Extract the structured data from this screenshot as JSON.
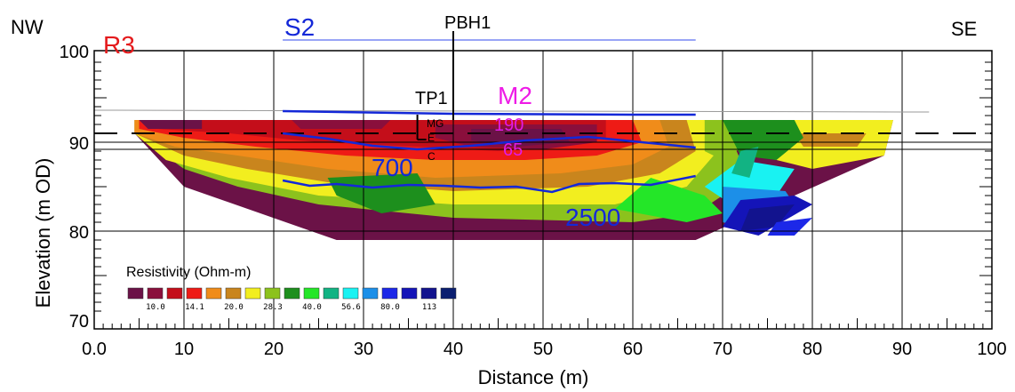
{
  "chart_data": {
    "type": "heatmap",
    "xlabel": "Distance (m)",
    "ylabel": "Elevation (m OD)",
    "xlim": [
      0,
      100
    ],
    "ylim": [
      69,
      103
    ],
    "x_ticks": [
      {
        "v": 0,
        "label": "0.0"
      },
      {
        "v": 10,
        "label": "10"
      },
      {
        "v": 20,
        "label": "20"
      },
      {
        "v": 30,
        "label": "30"
      },
      {
        "v": 40,
        "label": "40"
      },
      {
        "v": 50,
        "label": "50"
      },
      {
        "v": 60,
        "label": "60"
      },
      {
        "v": 70,
        "label": "70"
      },
      {
        "v": 80,
        "label": "80"
      },
      {
        "v": 90,
        "label": "90"
      },
      {
        "v": 100,
        "label": "100"
      }
    ],
    "y_ticks": [
      {
        "v": 100,
        "label": "100"
      },
      {
        "v": 90,
        "label": "90"
      },
      {
        "v": 80,
        "label": "80"
      },
      {
        "v": 70,
        "label": "70"
      }
    ],
    "grid": true,
    "corner_labels": {
      "left": "NW",
      "right": "SE"
    },
    "legend": {
      "title": "Resistivity (Ohm-m)",
      "colors": [
        "#6b1247",
        "#8a0f3c",
        "#c40e1a",
        "#ee1b16",
        "#f08c1a",
        "#c9851d",
        "#f2ee1f",
        "#8cc21d",
        "#1d8f1d",
        "#24e628",
        "#12b383",
        "#19f2f2",
        "#1c8fe8",
        "#1c28e8",
        "#1414b8",
        "#12138e",
        "#0a1e70"
      ],
      "tick_labels": [
        "10.0",
        "14.1",
        "20.0",
        "28.3",
        "40.0",
        "56.6",
        "80.0",
        "113"
      ]
    },
    "annotations": {
      "r3": "R3",
      "s2": "S2",
      "pbh1": "PBH1",
      "tp1": "TP1",
      "m2": "M2",
      "mg": "MG",
      "e": "E",
      "c": "C",
      "m2_val1": "190",
      "m2_val2": "65",
      "contour_700": "700",
      "contour_2500": "2500"
    },
    "water_level_m": 91,
    "ground_surface_m": 93.4,
    "section_outline": [
      [
        4.5,
        92.5
      ],
      [
        89,
        92.5
      ],
      [
        88,
        88.5
      ],
      [
        78,
        84
      ],
      [
        67,
        79
      ],
      [
        27,
        79
      ],
      [
        10,
        85
      ],
      [
        4.5,
        91
      ]
    ],
    "resistivity_zones": [
      {
        "level": 0,
        "poly": [
          [
            4.5,
            92.5
          ],
          [
            89,
            92.5
          ],
          [
            88,
            88.5
          ],
          [
            78,
            84
          ],
          [
            67,
            79
          ],
          [
            27,
            79
          ],
          [
            10,
            85
          ],
          [
            4.5,
            91
          ]
        ]
      },
      {
        "level": 7,
        "poly": [
          [
            4.5,
            92.5
          ],
          [
            70,
            92.5
          ],
          [
            72,
            88
          ],
          [
            70,
            84
          ],
          [
            67,
            82
          ],
          [
            60,
            81
          ],
          [
            40,
            81.5
          ],
          [
            25,
            83
          ],
          [
            16,
            85
          ],
          [
            10,
            87
          ],
          [
            4.5,
            91
          ]
        ]
      },
      {
        "level": 6,
        "poly": [
          [
            4.5,
            92.5
          ],
          [
            68,
            92.5
          ],
          [
            69,
            88.5
          ],
          [
            66,
            85
          ],
          [
            58,
            83
          ],
          [
            40,
            83
          ],
          [
            25,
            84
          ],
          [
            15,
            86
          ],
          [
            8,
            88
          ],
          [
            4.5,
            91
          ]
        ]
      },
      {
        "level": 5,
        "poly": [
          [
            4.5,
            92.5
          ],
          [
            66,
            92.5
          ],
          [
            67,
            89
          ],
          [
            63,
            86.5
          ],
          [
            55,
            85
          ],
          [
            40,
            84.5
          ],
          [
            26,
            85.5
          ],
          [
            17,
            87
          ],
          [
            10,
            88.5
          ],
          [
            4.5,
            91
          ]
        ]
      },
      {
        "level": 4,
        "poly": [
          [
            4.5,
            92.5
          ],
          [
            63,
            92.5
          ],
          [
            64,
            89.5
          ],
          [
            60,
            87.5
          ],
          [
            52,
            86.5
          ],
          [
            38,
            86
          ],
          [
            26,
            87
          ],
          [
            16,
            88.5
          ],
          [
            9,
            89.5
          ],
          [
            4.5,
            91
          ]
        ]
      },
      {
        "level": 3,
        "poly": [
          [
            5,
            92.5
          ],
          [
            60,
            92.5
          ],
          [
            61,
            90
          ],
          [
            56,
            88.5
          ],
          [
            48,
            88
          ],
          [
            38,
            88
          ],
          [
            28,
            88.5
          ],
          [
            18,
            89.5
          ],
          [
            10,
            90.5
          ],
          [
            5,
            91.5
          ]
        ]
      },
      {
        "level": 2,
        "poly": [
          [
            6,
            92.5
          ],
          [
            57,
            92.5
          ],
          [
            57,
            90.5
          ],
          [
            52,
            89.5
          ],
          [
            45,
            89
          ],
          [
            36,
            89.5
          ],
          [
            25,
            90
          ],
          [
            15,
            91
          ],
          [
            7,
            91.5
          ]
        ]
      },
      {
        "level": 1,
        "poly": [
          [
            38,
            92
          ],
          [
            56,
            92
          ],
          [
            56,
            90
          ],
          [
            50,
            89.2
          ],
          [
            42,
            89.5
          ],
          [
            38,
            90.5
          ]
        ]
      },
      {
        "level": 0,
        "poly": [
          [
            5,
            92.5
          ],
          [
            12,
            92.5
          ],
          [
            12,
            91.5
          ],
          [
            6,
            91.5
          ]
        ]
      },
      {
        "level": 1,
        "poly": [
          [
            22,
            92.5
          ],
          [
            33,
            92.5
          ],
          [
            32,
            91.5
          ],
          [
            23,
            91.5
          ]
        ]
      },
      {
        "level": 0,
        "poly": [
          [
            42,
            91.5
          ],
          [
            52,
            91.5
          ],
          [
            53,
            90
          ],
          [
            47,
            89.5
          ],
          [
            42,
            90.2
          ]
        ]
      },
      {
        "level": 7,
        "poly": [
          [
            68,
            92.5
          ],
          [
            74,
            92.5
          ],
          [
            73,
            90
          ],
          [
            70,
            88
          ],
          [
            68,
            89
          ]
        ]
      },
      {
        "level": 6,
        "poly": [
          [
            74,
            92.5
          ],
          [
            89,
            92.5
          ],
          [
            88,
            88.5
          ],
          [
            80,
            87
          ],
          [
            74,
            88.5
          ]
        ]
      },
      {
        "level": 5,
        "poly": [
          [
            78,
            91
          ],
          [
            86,
            91
          ],
          [
            85,
            89.5
          ],
          [
            79,
            89.5
          ]
        ]
      },
      {
        "level": 8,
        "poly": [
          [
            70,
            92.5
          ],
          [
            78,
            92.5
          ],
          [
            79,
            90.5
          ],
          [
            76,
            88
          ],
          [
            72,
            88.5
          ]
        ]
      },
      {
        "level": 8,
        "poly": [
          [
            26,
            86
          ],
          [
            36,
            86.5
          ],
          [
            38,
            83
          ],
          [
            32,
            82
          ],
          [
            27,
            84
          ]
        ]
      },
      {
        "level": 9,
        "poly": [
          [
            62,
            86
          ],
          [
            68,
            84
          ],
          [
            70,
            82
          ],
          [
            66,
            81
          ],
          [
            58,
            82.5
          ]
        ]
      },
      {
        "level": 11,
        "poly": [
          [
            72,
            88
          ],
          [
            78,
            87
          ],
          [
            76,
            84
          ],
          [
            71,
            83
          ],
          [
            68,
            85
          ]
        ]
      },
      {
        "level": 12,
        "poly": [
          [
            70,
            85
          ],
          [
            77,
            84.5
          ],
          [
            78,
            83
          ],
          [
            74,
            80
          ],
          [
            70,
            81
          ]
        ]
      },
      {
        "level": 14,
        "poly": [
          [
            72,
            83.5
          ],
          [
            78,
            84
          ],
          [
            80,
            83
          ],
          [
            74,
            79.5
          ],
          [
            70,
            80.5
          ]
        ]
      },
      {
        "level": 15,
        "poly": [
          [
            73,
            82.5
          ],
          [
            78,
            83
          ],
          [
            76,
            80.5
          ],
          [
            72,
            80
          ]
        ]
      },
      {
        "level": 10,
        "poly": [
          [
            72,
            89
          ],
          [
            74,
            89.5
          ],
          [
            73,
            86
          ],
          [
            71,
            86.5
          ]
        ]
      },
      {
        "level": 13,
        "poly": [
          [
            76,
            81
          ],
          [
            80,
            81.5
          ],
          [
            78,
            79.5
          ],
          [
            75,
            79.5
          ]
        ]
      }
    ],
    "blue_lines": [
      {
        "pts": [
          [
            21,
            93.5
          ],
          [
            40,
            93.2
          ],
          [
            60,
            93.1
          ],
          [
            67,
            93.1
          ]
        ]
      },
      {
        "pts": [
          [
            21,
            91
          ],
          [
            26,
            90.4
          ],
          [
            31,
            89.6
          ],
          [
            36,
            89.2
          ],
          [
            42,
            89.6
          ],
          [
            48,
            90.2
          ],
          [
            55,
            90.6
          ],
          [
            61,
            90.0
          ],
          [
            67,
            89.4
          ]
        ]
      },
      {
        "pts": [
          [
            21,
            85.7
          ],
          [
            24,
            85.1
          ],
          [
            27,
            85.3
          ],
          [
            31,
            84.9
          ],
          [
            35,
            85.2
          ],
          [
            39,
            85.1
          ],
          [
            43,
            84.9
          ],
          [
            47,
            85.0
          ],
          [
            51,
            84.4
          ],
          [
            54,
            85.3
          ],
          [
            58,
            85.4
          ],
          [
            62,
            85.2
          ],
          [
            67,
            86.2
          ]
        ]
      }
    ],
    "s2_line": {
      "x": [
        21,
        67
      ],
      "y": 101.5
    },
    "pbh1_line": {
      "x": 40,
      "y": [
        92.5,
        102.5
      ]
    },
    "tp1_bracket": {
      "x": 36,
      "y": [
        93.1,
        90.3
      ]
    },
    "thin_surface_line": [
      [
        0,
        93.6
      ],
      [
        93,
        93.4
      ]
    ]
  }
}
